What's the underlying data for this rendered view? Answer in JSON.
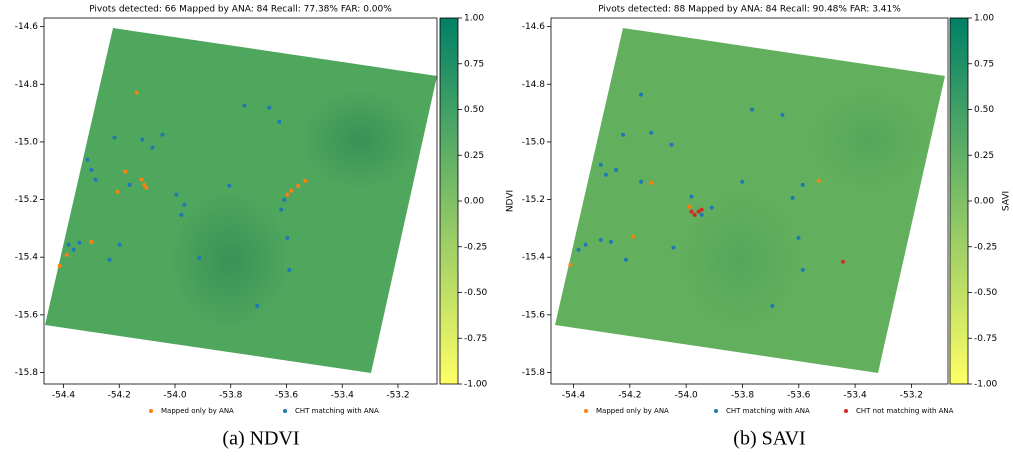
{
  "chart_data": [
    {
      "type": "scatter",
      "title": "Pivots detected: 66 Mapped by ANA: 84 Recall: 77.38% FAR: 0.00%",
      "caption": "(a)  NDVI",
      "xlim": [
        -54.47,
        -53.06
      ],
      "ylim": [
        -15.84,
        -14.57
      ],
      "xticks": [
        -54.4,
        -54.2,
        {
          "value": -54,
          "label": "-54.0"
        },
        -53.8,
        -53.6,
        -53.4,
        -53.2
      ],
      "yticks": [
        -14.6,
        -14.8,
        {
          "value": -15,
          "label": "-15.0"
        },
        -15.2,
        -15.4,
        -15.6,
        -15.8
      ],
      "colorbar": {
        "label": "NDVI",
        "lim": [
          -1,
          1
        ],
        "colors": [
          "#ffff66",
          "#008066"
        ],
        "ticks": [
          {
            "value": 1,
            "label": "1.00"
          },
          0.75,
          {
            "value": 0.5,
            "label": "0.50"
          },
          0.25,
          {
            "value": 0,
            "label": "0.00"
          },
          -0.25,
          {
            "value": -0.5,
            "label": "-0.50"
          },
          -0.75,
          {
            "value": -1,
            "label": "-1.00"
          }
        ]
      },
      "series": [
        {
          "name": "Mapped only by ANA",
          "color": "#ff7f0e",
          "x": [
            -54.138,
            -54.178,
            -54.12,
            -54.11,
            -54.103,
            -54.206,
            -53.597,
            -53.583,
            -53.558,
            -53.533,
            -54.3,
            -54.389,
            -54.414
          ],
          "y": [
            -14.829,
            -15.103,
            -15.131,
            -15.149,
            -15.159,
            -15.173,
            -15.183,
            -15.169,
            -15.152,
            -15.135,
            -15.347,
            -15.392,
            -15.43
          ]
        },
        {
          "name": "CHT matching with ANA",
          "color": "#1f77b4",
          "x": [
            -54.217,
            -54.117,
            -54.045,
            -54.081,
            -54.314,
            -54.3,
            -54.285,
            -54.163,
            -53.995,
            -53.966,
            -53.977,
            -53.805,
            -53.751,
            -53.662,
            -53.626,
            -53.608,
            -53.619,
            -53.597,
            -53.59,
            -53.705,
            -54.382,
            -54.364,
            -54.343,
            -54.235,
            -54.199,
            -53.913
          ],
          "y": [
            -14.985,
            -14.992,
            -14.975,
            -15.02,
            -15.062,
            -15.097,
            -15.131,
            -15.149,
            -15.183,
            -15.218,
            -15.253,
            -15.152,
            -14.874,
            -14.881,
            -14.93,
            -15.201,
            -15.235,
            -15.333,
            -15.444,
            -15.569,
            -15.357,
            -15.374,
            -15.35,
            -15.409,
            -15.357,
            -15.402
          ]
        }
      ]
    },
    {
      "type": "scatter",
      "title": "Pivots detected: 88 Mapped by ANA: 84 Recall: 90.48% FAR: 3.41%",
      "caption": "(b)  SAVI",
      "xlim": [
        -54.48,
        -53.07
      ],
      "ylim": [
        -15.84,
        -14.57
      ],
      "xticks": [
        -54.4,
        -54.2,
        {
          "value": -54,
          "label": "-54.0"
        },
        -53.8,
        -53.6,
        -53.4,
        -53.2
      ],
      "yticks": [
        -14.6,
        -14.8,
        {
          "value": -15,
          "label": "-15.0"
        },
        -15.2,
        -15.4,
        -15.6,
        -15.8
      ],
      "colorbar": {
        "label": "SAVI",
        "lim": [
          -1,
          1
        ],
        "colors": [
          "#ffff66",
          "#008066"
        ],
        "ticks": [
          {
            "value": 1,
            "label": "1.00"
          },
          0.75,
          {
            "value": 0.5,
            "label": "0.50"
          },
          0.25,
          {
            "value": 0,
            "label": "0.00"
          },
          -0.25,
          {
            "value": -0.5,
            "label": "-0.50"
          },
          -0.75,
          {
            "value": -1,
            "label": "-1.00"
          }
        ]
      },
      "series": [
        {
          "name": "Mapped only by ANA",
          "color": "#ff7f0e",
          "x": [
            -54.411,
            -54.124,
            -53.529,
            -54.189,
            -53.988
          ],
          "y": [
            -15.426,
            -15.142,
            -15.135,
            -15.329,
            -15.225
          ]
        },
        {
          "name": "CHT matching with ANA",
          "color": "#1f77b4",
          "x": [
            -54.224,
            -54.124,
            -54.052,
            -54.303,
            -54.285,
            -54.249,
            -54.16,
            -53.981,
            -53.909,
            -53.801,
            -53.766,
            -53.658,
            -53.622,
            -53.586,
            -53.601,
            -53.586,
            -53.694,
            -54.382,
            -54.357,
            -54.303,
            -54.267,
            -54.214,
            -54.045,
            -53.945,
            -54.16
          ],
          "y": [
            -14.975,
            -14.968,
            -15.01,
            -15.079,
            -15.114,
            -15.097,
            -15.138,
            -15.19,
            -15.228,
            -15.138,
            -14.888,
            -14.906,
            -15.194,
            -15.149,
            -15.333,
            -15.444,
            -15.569,
            -15.374,
            -15.357,
            -15.34,
            -15.347,
            -15.409,
            -15.367,
            -15.253,
            -14.836
          ]
        },
        {
          "name": "CHT not matching with ANA",
          "color": "#d62728",
          "x": [
            -53.981,
            -53.97,
            -53.956,
            -53.945,
            -53.443
          ],
          "y": [
            -15.242,
            -15.253,
            -15.242,
            -15.235,
            -15.416
          ]
        }
      ]
    }
  ]
}
